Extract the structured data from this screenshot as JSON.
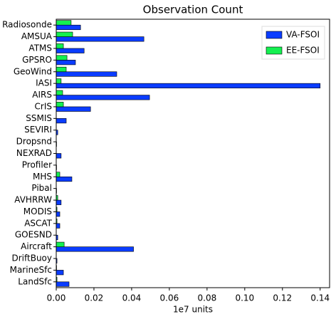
{
  "chart_data": {
    "type": "barh",
    "title": "Observation Count",
    "xlabel": "1e7 units",
    "categories": [
      "Radiosonde",
      "AMSUA",
      "ATMS",
      "GPSRO",
      "GeoWind",
      "IASI",
      "AIRS",
      "CrIS",
      "SSMIS",
      "SEVIRI",
      "Dropsnd",
      "NEXRAD",
      "Profiler",
      "MHS",
      "Pibal",
      "AVHRRW",
      "MODIS",
      "ASCAT",
      "GOESND",
      "Aircraft",
      "DriftBuoy",
      "MarineSfc",
      "LandSfc"
    ],
    "series": [
      {
        "name": "VA-FSOI",
        "color": "#0a3cff",
        "values": [
          0.0129,
          0.0465,
          0.0148,
          0.0102,
          0.0321,
          0.14,
          0.0495,
          0.0182,
          0.0053,
          0.0008,
          0.0002,
          0.0026,
          0.0002,
          0.0083,
          0.0002,
          0.0026,
          0.0019,
          0.0019,
          0.0008,
          0.041,
          0.0004,
          0.0038,
          0.0068
        ]
      },
      {
        "name": "EE-FSOI",
        "color": "#14f050",
        "values": [
          0.0079,
          0.0087,
          0.0038,
          0.0057,
          0.0053,
          0.0026,
          0.0034,
          0.0038,
          0,
          0,
          0,
          0,
          0,
          0.0019,
          0,
          0.0008,
          0.0004,
          0.0004,
          0,
          0.0042,
          0,
          0.0002,
          0.0004
        ]
      }
    ],
    "xlim": [
      0,
      0.145
    ],
    "xticks": [
      {
        "value": 0,
        "label": "0.00"
      },
      0.02,
      0.04,
      0.06,
      0.08,
      {
        "value": 0.1,
        "label": "0.10"
      },
      0.12,
      0.14
    ],
    "legend": "upper right"
  }
}
